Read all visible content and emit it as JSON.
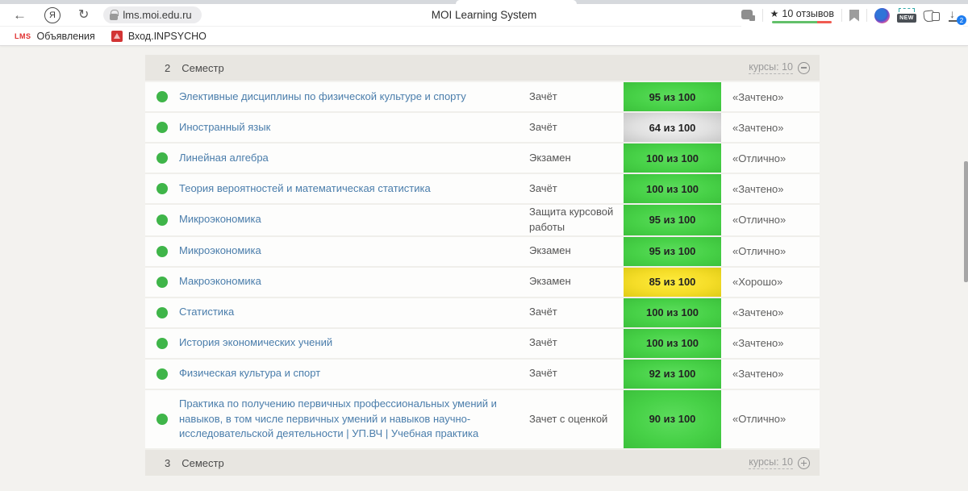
{
  "browser": {
    "url": "lms.moi.edu.ru",
    "tab_title": "MOI Learning System",
    "yandex_logo_letter": "Я",
    "reviews_label": "10 отзывов",
    "new_badge": "NEW",
    "downloads_badge": "2",
    "bookmarks": [
      {
        "favicon_text": "LMS",
        "label": "Объявления"
      },
      {
        "favicon_text": "",
        "label": "Вход.INPSYCHO"
      }
    ]
  },
  "table": {
    "header": {
      "number": "2",
      "title": "Семестр",
      "courses_label": "курсы: 10"
    },
    "footer": {
      "number": "3",
      "title": "Семестр",
      "courses_label": "курсы: 10"
    },
    "colors": {
      "green": "#47d147",
      "yellow": "#f5dd28",
      "gray": "#e0e0e0",
      "link": "#4a7dab",
      "status_dot": "#3fb549"
    },
    "rows": [
      {
        "name": "Элективные дисциплины по физической культуре и спорту",
        "type": "Зачёт",
        "score": "95 из 100",
        "score_color": "green",
        "grade": "«Зачтено»"
      },
      {
        "name": "Иностранный язык",
        "type": "Зачёт",
        "score": "64 из 100",
        "score_color": "gray",
        "grade": "«Зачтено»"
      },
      {
        "name": "Линейная алгебра",
        "type": "Экзамен",
        "score": "100 из 100",
        "score_color": "green",
        "grade": "«Отлично»"
      },
      {
        "name": "Теория вероятностей и математическая статистика",
        "type": "Зачёт",
        "score": "100 из 100",
        "score_color": "green",
        "grade": "«Зачтено»"
      },
      {
        "name": "Микроэкономика",
        "type": "Защита курсовой работы",
        "score": "95 из 100",
        "score_color": "green",
        "grade": "«Отлично»"
      },
      {
        "name": "Микроэкономика",
        "type": "Экзамен",
        "score": "95 из 100",
        "score_color": "green",
        "grade": "«Отлично»"
      },
      {
        "name": "Макроэкономика",
        "type": "Экзамен",
        "score": "85 из 100",
        "score_color": "yellow",
        "grade": "«Хорошо»"
      },
      {
        "name": "Статистика",
        "type": "Зачёт",
        "score": "100 из 100",
        "score_color": "green",
        "grade": "«Зачтено»"
      },
      {
        "name": "История экономических учений",
        "type": "Зачёт",
        "score": "100 из 100",
        "score_color": "green",
        "grade": "«Зачтено»"
      },
      {
        "name": "Физическая культура и спорт",
        "type": "Зачёт",
        "score": "92 из 100",
        "score_color": "green",
        "grade": "«Зачтено»"
      },
      {
        "name": "Практика по получению первичных профессиональных умений и навыков, в том числе первичных умений и навыков научно-исследовательской деятельности | УП.ВЧ | Учебная практика",
        "type": "Зачет с оценкой",
        "score": "90 из 100",
        "score_color": "green",
        "grade": "«Отлично»"
      }
    ]
  }
}
